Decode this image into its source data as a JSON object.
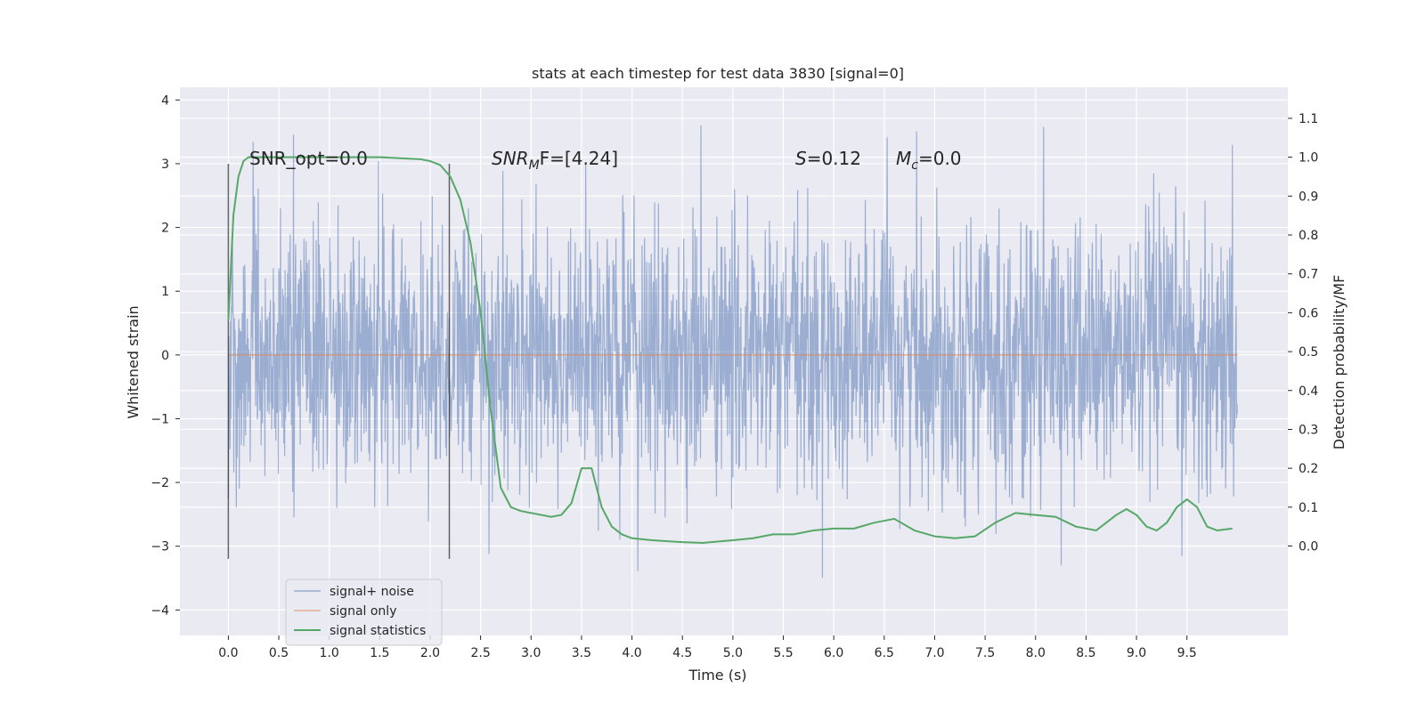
{
  "chart_data": {
    "type": "line",
    "title": "stats at each timestep for test data 3830 [signal=0]",
    "xlabel": "Time (s)",
    "ylabel": "Whitened strain",
    "y2label": "Detection probability/MF",
    "xlim": [
      -0.48,
      10.5
    ],
    "ylim": [
      -4.4,
      4.2
    ],
    "y2lim": [
      -0.23,
      1.18
    ],
    "x_ticks": [
      "0.0",
      "0.5",
      "1.0",
      "1.5",
      "2.0",
      "2.5",
      "3.0",
      "3.5",
      "4.0",
      "4.5",
      "5.0",
      "5.5",
      "6.0",
      "6.5",
      "7.0",
      "7.5",
      "8.0",
      "8.5",
      "9.0",
      "9.5"
    ],
    "y_ticks": [
      "4",
      "3",
      "2",
      "1",
      "0",
      "−1",
      "−2",
      "−3",
      "−4"
    ],
    "y2_ticks": [
      "1.1",
      "1.0",
      "0.9",
      "0.8",
      "0.7",
      "0.6",
      "0.5",
      "0.4",
      "0.3",
      "0.2",
      "0.1",
      "0.0"
    ],
    "grid": true,
    "legend_position": "lower-left",
    "annotations": {
      "snr_opt": "SNR_opt=0.0",
      "snr_mf_a": "SNR",
      "snr_mf_sub": "M",
      "snr_mf_b": "F=[4.24]",
      "s_a": "S",
      "s_b": "=0.12",
      "mc_a": "M",
      "mc_sub": "c",
      "mc_b": "=0.0"
    },
    "vlines": {
      "x": [
        0.0,
        2.19
      ],
      "ymin": -3.2,
      "ymax": 3.0
    },
    "series": [
      {
        "name": "signal+ noise",
        "color": "#4c72b0",
        "x_range": [
          0.0,
          10.0
        ],
        "envelope_abs": 3.6
      },
      {
        "name": "signal only",
        "color": "#dd8452",
        "x": [
          0.0,
          10.0
        ],
        "y": [
          0.0,
          0.0
        ]
      },
      {
        "name": "signal statistics",
        "color": "#55a868",
        "axis": "right",
        "x": [
          0.0,
          0.05,
          0.1,
          0.15,
          0.2,
          0.3,
          0.5,
          1.0,
          1.5,
          1.9,
          2.0,
          2.1,
          2.2,
          2.3,
          2.4,
          2.5,
          2.6,
          2.7,
          2.8,
          2.9,
          3.0,
          3.1,
          3.2,
          3.3,
          3.4,
          3.5,
          3.6,
          3.7,
          3.8,
          3.9,
          4.0,
          4.2,
          4.5,
          4.7,
          5.0,
          5.2,
          5.4,
          5.6,
          5.8,
          6.0,
          6.2,
          6.4,
          6.6,
          6.8,
          7.0,
          7.2,
          7.4,
          7.6,
          7.8,
          8.0,
          8.2,
          8.4,
          8.6,
          8.8,
          8.9,
          9.0,
          9.1,
          9.2,
          9.3,
          9.4,
          9.5,
          9.6,
          9.7,
          9.8,
          9.95
        ],
        "y": [
          0.58,
          0.85,
          0.95,
          0.99,
          1.0,
          1.0,
          1.0,
          1.0,
          1.0,
          0.995,
          0.99,
          0.98,
          0.95,
          0.89,
          0.78,
          0.6,
          0.35,
          0.15,
          0.1,
          0.09,
          0.085,
          0.08,
          0.075,
          0.08,
          0.11,
          0.2,
          0.2,
          0.1,
          0.05,
          0.03,
          0.02,
          0.015,
          0.01,
          0.008,
          0.015,
          0.02,
          0.03,
          0.03,
          0.04,
          0.045,
          0.045,
          0.06,
          0.07,
          0.04,
          0.025,
          0.02,
          0.025,
          0.06,
          0.085,
          0.08,
          0.075,
          0.05,
          0.04,
          0.08,
          0.095,
          0.08,
          0.05,
          0.04,
          0.06,
          0.1,
          0.12,
          0.1,
          0.05,
          0.04,
          0.045
        ]
      }
    ]
  }
}
